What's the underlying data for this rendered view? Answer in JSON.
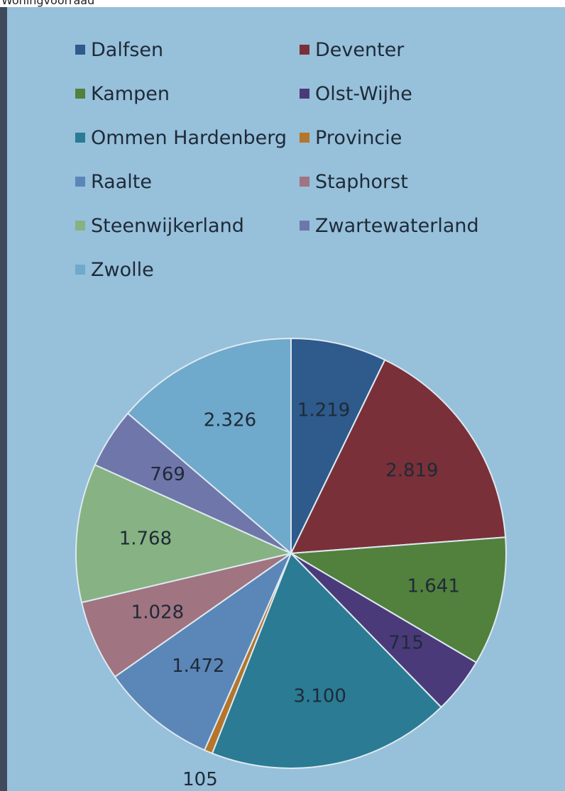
{
  "header": {
    "cut_text": "Woningvoorraad"
  },
  "chart_data": {
    "type": "pie",
    "title": "",
    "legend_position": "top",
    "categories": [
      "Dalfsen",
      "Deventer",
      "Kampen",
      "Olst-Wijhe",
      "Ommen Hardenberg",
      "Provincie",
      "Raalte",
      "Staphorst",
      "Steenwijkerland",
      "Zwartewaterland",
      "Zwolle"
    ],
    "values": [
      1219,
      2819,
      1641,
      715,
      3100,
      105,
      1472,
      1028,
      1768,
      769,
      2326
    ],
    "value_labels": [
      "1.219",
      "2.819",
      "1.641",
      "715",
      "3.100",
      "105",
      "1.472",
      "1.028",
      "1.768",
      "769",
      "2.326"
    ],
    "colors": [
      "#2e5a8c",
      "#7a3038",
      "#52803d",
      "#4a3a7a",
      "#2a7b93",
      "#b5752b",
      "#5b86b8",
      "#a07480",
      "#87b283",
      "#6f76a9",
      "#6fa9cb"
    ]
  }
}
